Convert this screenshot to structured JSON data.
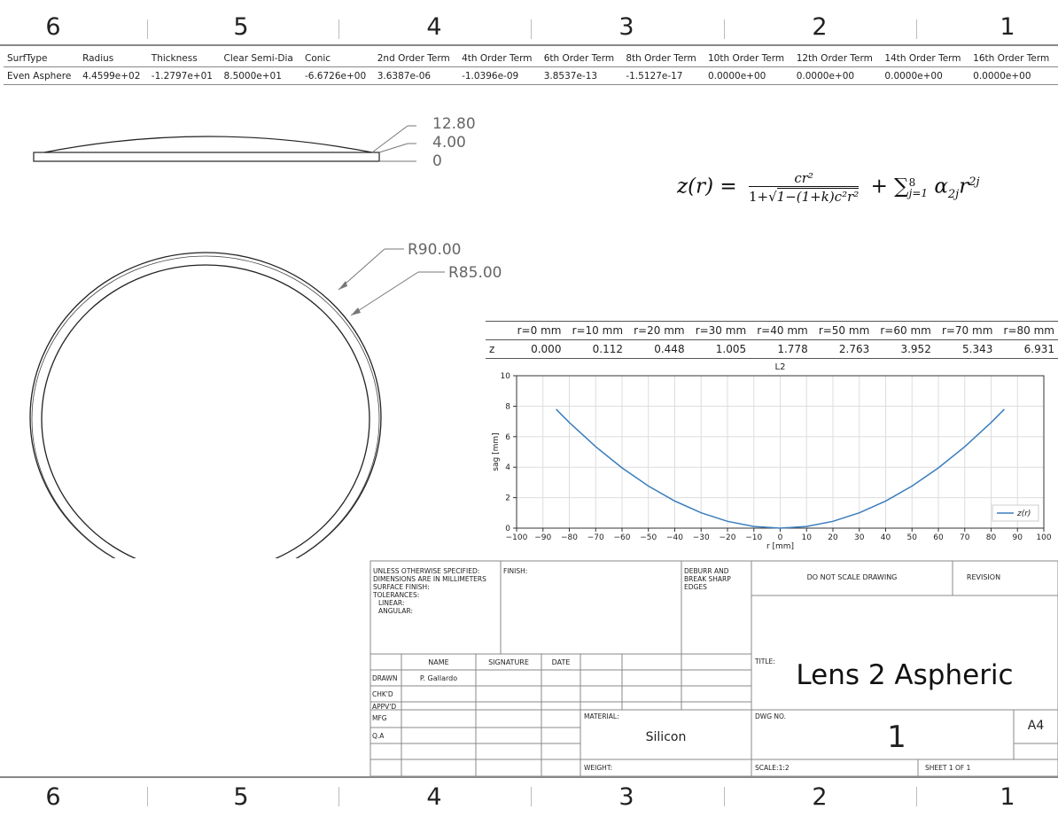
{
  "zones": [
    "6",
    "5",
    "4",
    "3",
    "2",
    "1"
  ],
  "params": {
    "headers": [
      "SurfType",
      "Radius",
      "Thickness",
      "Clear Semi-Dia",
      "Conic",
      "2nd Order Term",
      "4th Order Term",
      "6th Order Term",
      "8th Order Term",
      "10th Order Term",
      "12th Order Term",
      "14th Order Term",
      "16th Order Term"
    ],
    "values": [
      "Even Asphere",
      "4.4599e+02",
      "-1.2797e+01",
      "8.5000e+01",
      "-6.6726e+00",
      "3.6387e-06",
      "-1.0396e-09",
      "3.8537e-13",
      "-1.5127e-17",
      "0.0000e+00",
      "0.0000e+00",
      "0.0000e+00",
      "0.0000e+00"
    ]
  },
  "side_dims": [
    "12.80",
    "4.00",
    "0"
  ],
  "radial_dims": [
    "R90.00",
    "R85.00"
  ],
  "equation": {
    "lhs": "z(r) =",
    "num": "cr²",
    "den_pre": "1+",
    "den_sqrt": "1−(1+k)c²r²",
    "sum": "+ ∑",
    "sum_sup": "8",
    "sum_sub": "j=1",
    "term": "α",
    "term_sub": "2j",
    "term_r": "r",
    "term_sup": "2j"
  },
  "sag_table": {
    "headers": [
      "r=0 mm",
      "r=10 mm",
      "r=20 mm",
      "r=30 mm",
      "r=40 mm",
      "r=50 mm",
      "r=60 mm",
      "r=70 mm",
      "r=80 mm"
    ],
    "row_label": "z",
    "values": [
      "0.000",
      "0.112",
      "0.448",
      "1.005",
      "1.778",
      "2.763",
      "3.952",
      "5.343",
      "6.931"
    ]
  },
  "chart_data": {
    "type": "line",
    "title": "L2",
    "xlabel": "r [mm]",
    "ylabel": "sag [mm]",
    "xlim": [
      -100,
      100
    ],
    "ylim": [
      0,
      10
    ],
    "xticks": [
      -100,
      -90,
      -80,
      -70,
      -60,
      -50,
      -40,
      -30,
      -20,
      -10,
      0,
      10,
      20,
      30,
      40,
      50,
      60,
      70,
      80,
      90,
      100
    ],
    "yticks": [
      0,
      2,
      4,
      6,
      8,
      10
    ],
    "grid": true,
    "legend_position": "bottom-right",
    "series": [
      {
        "name": "z(r)",
        "color": "#3a7dbd",
        "x": [
          -85,
          -80,
          -70,
          -60,
          -50,
          -40,
          -30,
          -20,
          -10,
          0,
          10,
          20,
          30,
          40,
          50,
          60,
          70,
          80,
          85
        ],
        "y": [
          7.8,
          6.931,
          5.343,
          3.952,
          2.763,
          1.778,
          1.005,
          0.448,
          0.112,
          0.0,
          0.112,
          0.448,
          1.005,
          1.778,
          2.763,
          3.952,
          5.343,
          6.931,
          7.8
        ]
      }
    ]
  },
  "title_block": {
    "general_notes": [
      "UNLESS OTHERWISE SPECIFIED:",
      "DIMENSIONS ARE IN MILLIMETERS",
      "SURFACE FINISH:",
      "TOLERANCES:",
      "  LINEAR:",
      "  ANGULAR:"
    ],
    "finish_label": "FINISH:",
    "deburr": [
      "DEBURR AND",
      "BREAK SHARP",
      "EDGES"
    ],
    "do_not_scale": "DO NOT SCALE DRAWING",
    "revision_label": "REVISION",
    "col_name": "NAME",
    "col_signature": "SIGNATURE",
    "col_date": "DATE",
    "rows": [
      "DRAWN",
      "CHK'D",
      "APPV'D",
      "MFG",
      "Q.A"
    ],
    "drawn_name": "P. Gallardo",
    "title_label": "TITLE:",
    "title": "Lens 2 Aspheric",
    "material_label": "MATERIAL:",
    "material": "Silicon",
    "weight_label": "WEIGHT:",
    "dwg_no_label": "DWG NO.",
    "dwg_no": "1",
    "size": "A4",
    "scale": "SCALE:1:2",
    "sheet": "SHEET 1 OF 1"
  }
}
